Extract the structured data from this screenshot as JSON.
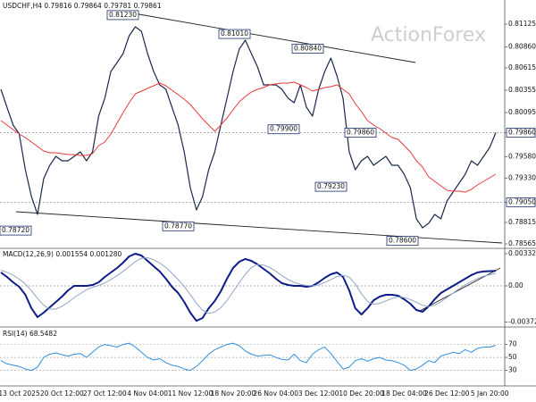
{
  "chart_data": [
    {
      "type": "line",
      "title": "USDCHF,H4  0.79816 0.79864 0.79781 0.79861",
      "watermark": "ActionForex",
      "ylim": [
        0.78513,
        0.81406
      ],
      "yticks": [
        {
          "value": 0.81125,
          "label": "0.81125"
        },
        {
          "value": 0.8086,
          "label": "0.80860"
        },
        {
          "value": 0.80615,
          "label": "0.80615"
        },
        {
          "value": 0.80355,
          "label": "0.80355"
        },
        {
          "value": 0.80095,
          "label": "0.80095"
        },
        {
          "value": 0.7986,
          "label": "0.79860"
        },
        {
          "value": 0.7958,
          "label": "0.79580"
        },
        {
          "value": 0.7933,
          "label": "0.79330"
        },
        {
          "value": 0.7905,
          "label": "0.79050"
        },
        {
          "value": 0.78815,
          "label": "0.78815"
        },
        {
          "value": 0.78565,
          "label": "0.78565"
        }
      ],
      "grid": false,
      "levels": [
        0.7986,
        0.7905
      ],
      "annotations": [
        {
          "value": 0.8123,
          "label": "0.81230"
        },
        {
          "value": 0.8101,
          "label": "0.81010"
        },
        {
          "value": 0.8084,
          "label": "0.80840"
        },
        {
          "value": 0.799,
          "label": "0.79900"
        },
        {
          "value": 0.7986,
          "label": "0.79860"
        },
        {
          "value": 0.7923,
          "label": "0.79230"
        },
        {
          "value": 0.7877,
          "label": "0.78770"
        },
        {
          "value": 0.7872,
          "label": "0.78720"
        },
        {
          "value": 0.786,
          "label": "0.78600"
        }
      ],
      "series": [
        {
          "color": "#1a2a4a",
          "width": 1.2,
          "values": [
            0.80365,
            0.80157,
            0.79949,
            0.79845,
            0.79429,
            0.79116,
            0.78908,
            0.79325,
            0.79481,
            0.79585,
            0.79533,
            0.79533,
            0.79585,
            0.79637,
            0.79533,
            0.79637,
            0.80053,
            0.80261,
            0.80573,
            0.80677,
            0.80782,
            0.8099,
            0.81094,
            0.81042,
            0.80782,
            0.80573,
            0.80417,
            0.80365,
            0.80157,
            0.79949,
            0.79637,
            0.79221,
            0.7896,
            0.79116,
            0.79429,
            0.79637,
            0.79949,
            0.80261,
            0.80573,
            0.80834,
            0.80938,
            0.80782,
            0.80625,
            0.80417,
            0.80417,
            0.80417,
            0.80365,
            0.80261,
            0.80209,
            0.80417,
            0.80157,
            0.80053,
            0.80365,
            0.80573,
            0.8073,
            0.80521,
            0.80261,
            0.79637,
            0.79429,
            0.79533,
            0.79585,
            0.79481,
            0.79533,
            0.79585,
            0.79481,
            0.79481,
            0.79377,
            0.79221,
            0.78856,
            0.78752,
            0.78804,
            0.78908,
            0.78856,
            0.79064,
            0.79169,
            0.79273,
            0.79377,
            0.79533,
            0.79481,
            0.79585,
            0.79689,
            0.79861
          ]
        },
        {
          "color": "#e8393a",
          "width": 1,
          "values": [
            0.80001,
            0.79949,
            0.79897,
            0.79845,
            0.79803,
            0.79751,
            0.79699,
            0.79647,
            0.79626,
            0.79626,
            0.79616,
            0.79606,
            0.79606,
            0.79595,
            0.79595,
            0.79616,
            0.7971,
            0.79751,
            0.79845,
            0.7997,
            0.80095,
            0.80209,
            0.80313,
            0.80345,
            0.80376,
            0.80407,
            0.80438,
            0.80407,
            0.80355,
            0.80303,
            0.80251,
            0.80188,
            0.80105,
            0.80022,
            0.79949,
            0.79876,
            0.79949,
            0.80032,
            0.80126,
            0.8022,
            0.80282,
            0.80334,
            0.80365,
            0.80386,
            0.80417,
            0.80428,
            0.80438,
            0.80438,
            0.80449,
            0.80417,
            0.80386,
            0.80345,
            0.80365,
            0.80386,
            0.80397,
            0.80417,
            0.80365,
            0.80313,
            0.80199,
            0.80105,
            0.80001,
            0.79949,
            0.79907,
            0.79855,
            0.79803,
            0.79783,
            0.7971,
            0.79637,
            0.79533,
            0.7946,
            0.79345,
            0.79293,
            0.79241,
            0.79189,
            0.79179,
            0.79179,
            0.79168,
            0.792,
            0.79252,
            0.79293,
            0.79335,
            0.79377
          ]
        }
      ]
    },
    {
      "type": "line",
      "title": "MACD(12,26,9) 0.001554 0.001280",
      "ylim": [
        -0.00424,
        0.00387
      ],
      "yticks": [
        0.003321,
        {
          "value": 0,
          "label": "0.00"
        },
        -0.003723
      ],
      "grid": false,
      "levels": [
        0
      ],
      "series": [
        {
          "color": "#0e1c8a",
          "width": 2,
          "values": [
            0.00138,
            0.00092,
            0.00037,
            -9e-05,
            -0.00092,
            -0.00231,
            -0.00323,
            -0.00277,
            -0.00221,
            -0.00166,
            -0.00111,
            -0.00046,
            0,
            0,
            0,
            9e-05,
            0.00037,
            0.00092,
            0.00138,
            0.00184,
            0.0024,
            0.00304,
            0.00332,
            0.00313,
            0.00258,
            0.00203,
            0.00148,
            0.00074,
            -9e-05,
            -0.00074,
            -0.00166,
            -0.00277,
            -0.0036,
            -0.00332,
            -0.00231,
            -0.00157,
            -0.00055,
            0.00074,
            0.00184,
            0.00249,
            0.00277,
            0.00258,
            0.00221,
            0.00175,
            0.00129,
            0.00074,
            0.00028,
            9e-05,
            0,
            0,
            -9e-05,
            0,
            0.00037,
            0.00083,
            0.0012,
            0.00138,
            0.00092,
            -0.00046,
            -0.00231,
            -0.00295,
            -0.00231,
            -0.00148,
            -0.00111,
            -0.00092,
            -0.00092,
            -0.00101,
            -0.00138,
            -0.00184,
            -0.00249,
            -0.00267,
            -0.00212,
            -0.00138,
            -0.00074,
            -0.00037,
            0,
            0.00037,
            0.00074,
            0.00111,
            0.00138,
            0.00148,
            0.00152,
            0.00155
          ]
        },
        {
          "color": "#8fa6c8",
          "width": 1,
          "values": [
            0.0016,
            0.0014,
            0.0011,
            0.0007,
            0.0002,
            -0.0005,
            -0.0013,
            -0.002,
            -0.0024,
            -0.0024,
            -0.0021,
            -0.0017,
            -0.0012,
            -0.0008,
            -0.0004,
            -0.00015,
            5e-05,
            0.0003,
            0.00065,
            0.00105,
            0.0015,
            0.002,
            0.0025,
            0.00285,
            0.0029,
            0.0027,
            0.00235,
            0.0019,
            0.0013,
            0.00065,
            -5e-05,
            -0.0009,
            -0.0018,
            -0.0025,
            -0.00285,
            -0.0027,
            -0.00225,
            -0.0015,
            -0.0006,
            0.0003,
            0.0012,
            0.0019,
            0.0022,
            0.00215,
            0.0019,
            0.0015,
            0.00105,
            0.00065,
            0.00035,
            0.00015,
            5e-05,
            0.0,
            0.0001,
            0.00035,
            0.00065,
            0.00095,
            0.0011,
            0.0009,
            0.0002,
            -0.0008,
            -0.0016,
            -0.0019,
            -0.0018,
            -0.00155,
            -0.0013,
            -0.00115,
            -0.0012,
            -0.0014,
            -0.0017,
            -0.002,
            -0.00215,
            -0.002,
            -0.00165,
            -0.0012,
            -0.00075,
            -0.0003,
            0.0001,
            0.00045,
            0.00075,
            0.001,
            0.00115,
            0.00128
          ]
        }
      ]
    },
    {
      "type": "line",
      "title": "RSI(14) 68.5482",
      "ylim": [
        6,
        97
      ],
      "yticks": [
        70,
        50,
        30
      ],
      "grid": true,
      "categories": [
        null,
        null,
        null,
        "13 Oct 2025",
        null,
        null,
        null,
        null,
        null,
        null,
        "20 Oct 12:00",
        null,
        null,
        null,
        null,
        null,
        null,
        "27 Oct 12:00",
        null,
        null,
        null,
        null,
        null,
        null,
        "4 Nov 04:00",
        null,
        null,
        null,
        null,
        null,
        null,
        "11 Nov 12:00",
        null,
        null,
        null,
        null,
        null,
        null,
        "18 Nov 20:00",
        null,
        null,
        null,
        null,
        null,
        null,
        "26 Nov 04:00",
        null,
        null,
        null,
        null,
        null,
        null,
        "3 Dec 12:00",
        null,
        null,
        null,
        null,
        null,
        null,
        "10 Dec 20:00",
        null,
        null,
        null,
        null,
        null,
        null,
        "18 Dec 04:00",
        null,
        null,
        null,
        null,
        null,
        null,
        "26 Dec 12:00",
        null,
        null,
        null,
        null,
        null,
        null,
        "5 Jan 20:00",
        null
      ],
      "series": [
        {
          "color": "#2f8fe0",
          "width": 1,
          "values": [
            45,
            40,
            38,
            36,
            32,
            30,
            35,
            50,
            55,
            57,
            54,
            52,
            55,
            56,
            50,
            58,
            66,
            70,
            68,
            66,
            70,
            72,
            66,
            58,
            50,
            46,
            48,
            42,
            38,
            36,
            32,
            30,
            36,
            45,
            55,
            62,
            66,
            70,
            72,
            68,
            60,
            55,
            52,
            53,
            54,
            50,
            47,
            46,
            55,
            45,
            42,
            55,
            62,
            66,
            56,
            44,
            32,
            35,
            45,
            48,
            44,
            48,
            50,
            46,
            45,
            42,
            38,
            30,
            32,
            38,
            45,
            42,
            52,
            55,
            58,
            56,
            62,
            58,
            64,
            66,
            66,
            68.5482
          ]
        }
      ]
    }
  ]
}
